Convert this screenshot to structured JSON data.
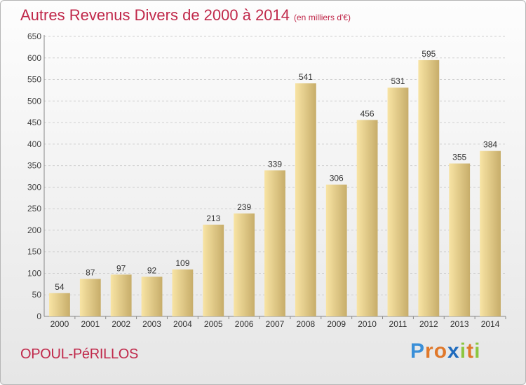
{
  "title": "Autres Revenus Divers de 2000 à 2014",
  "subtitle": "(en milliers d'€)",
  "town": "OPOUL-PéRILLOS",
  "logo": {
    "letters": [
      "P",
      "r",
      "o",
      "x",
      "i",
      "t",
      "i"
    ],
    "colors": [
      "#3a8fd8",
      "#e0782a",
      "#e0782a",
      "#1f6bbd",
      "#8cc63f",
      "#e0782a",
      "#8cc63f"
    ]
  },
  "colors": {
    "bar_light": "#f8e4a4",
    "bar_dark": "#c7ad6a",
    "title": "#c0284a",
    "grid": "#cfcfcf"
  },
  "chart_data": {
    "type": "bar",
    "categories": [
      "2000",
      "2001",
      "2002",
      "2003",
      "2004",
      "2005",
      "2006",
      "2007",
      "2008",
      "2009",
      "2010",
      "2011",
      "2012",
      "2013",
      "2014"
    ],
    "values": [
      54,
      87,
      97,
      92,
      109,
      213,
      239,
      339,
      541,
      306,
      456,
      531,
      595,
      355,
      384
    ],
    "ylim": [
      0,
      650
    ],
    "yticks": [
      0,
      50,
      100,
      150,
      200,
      250,
      300,
      350,
      400,
      450,
      500,
      550,
      600,
      650
    ],
    "grid": true,
    "legend": "none"
  }
}
